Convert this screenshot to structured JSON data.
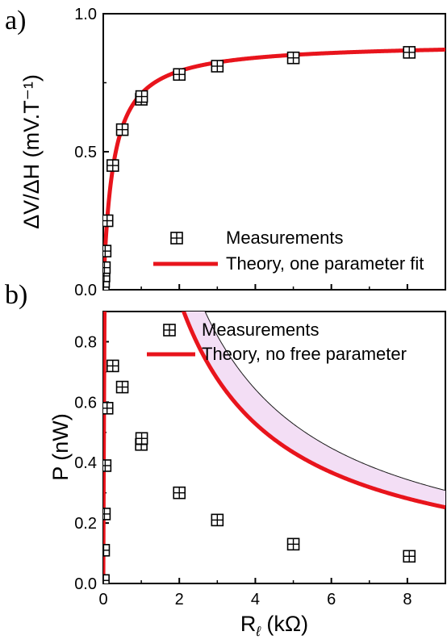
{
  "chart_data": [
    {
      "panel": "a)",
      "type": "scatter",
      "ylabel": "ΔV/ΔH (mV.T⁻¹)",
      "xlim": [
        0,
        9
      ],
      "ylim": [
        0,
        1.0
      ],
      "x_ticks": [
        0,
        2,
        4,
        6,
        8
      ],
      "x_tick_labels": [
        "",
        "",
        "",
        "",
        ""
      ],
      "y_ticks": [
        0.0,
        0.5,
        1.0
      ],
      "y_tick_labels": [
        "0.0",
        "0.5",
        "1.0"
      ],
      "legend_position": "lower-right",
      "series": [
        {
          "name": "Measurements",
          "kind": "markers",
          "marker": "boxed-cross",
          "color": "#000000",
          "x": [
            0.003,
            0.01,
            0.02,
            0.03,
            0.05,
            0.1,
            0.25,
            0.5,
            1.0,
            1.01,
            2.0,
            3.0,
            5.0,
            8.05
          ],
          "y": [
            0.01,
            0.03,
            0.05,
            0.08,
            0.14,
            0.25,
            0.45,
            0.58,
            0.69,
            0.7,
            0.78,
            0.81,
            0.84,
            0.86
          ]
        },
        {
          "name": "Theory, one parameter fit",
          "kind": "line",
          "color": "#e8141c",
          "model": "y = 0.895 * x / (x + 0.26)",
          "x_range": [
            0,
            9
          ]
        }
      ]
    },
    {
      "panel": "b)",
      "type": "scatter",
      "xlabel": "Rℓ (kΩ)",
      "ylabel": "P (nW)",
      "xlim": [
        0,
        9
      ],
      "ylim": [
        0,
        0.9
      ],
      "x_ticks": [
        0,
        2,
        4,
        6,
        8
      ],
      "x_tick_labels": [
        "0",
        "2",
        "4",
        "6",
        "8"
      ],
      "y_ticks": [
        0.0,
        0.2,
        0.4,
        0.6,
        0.8
      ],
      "y_tick_labels": [
        "0.0",
        "0.2",
        "0.4",
        "0.6",
        "0.8"
      ],
      "legend_position": "top-right",
      "shaded_band_color": "#f3def5",
      "series": [
        {
          "name": "Measurements",
          "kind": "markers",
          "marker": "boxed-cross",
          "color": "#000000",
          "x": [
            0.003,
            0.01,
            0.03,
            0.05,
            0.1,
            0.25,
            0.5,
            1.0,
            1.01,
            2.0,
            3.0,
            5.0,
            8.05
          ],
          "y": [
            0.01,
            0.11,
            0.23,
            0.39,
            0.58,
            0.72,
            0.65,
            0.46,
            0.48,
            0.3,
            0.21,
            0.13,
            0.09
          ]
        },
        {
          "name": "Theory, no free parameter",
          "kind": "line",
          "color": "#e8141c",
          "model": "y = 2.4 * x / (x + 0.26)^2",
          "x_range": [
            0,
            9
          ]
        }
      ]
    }
  ]
}
